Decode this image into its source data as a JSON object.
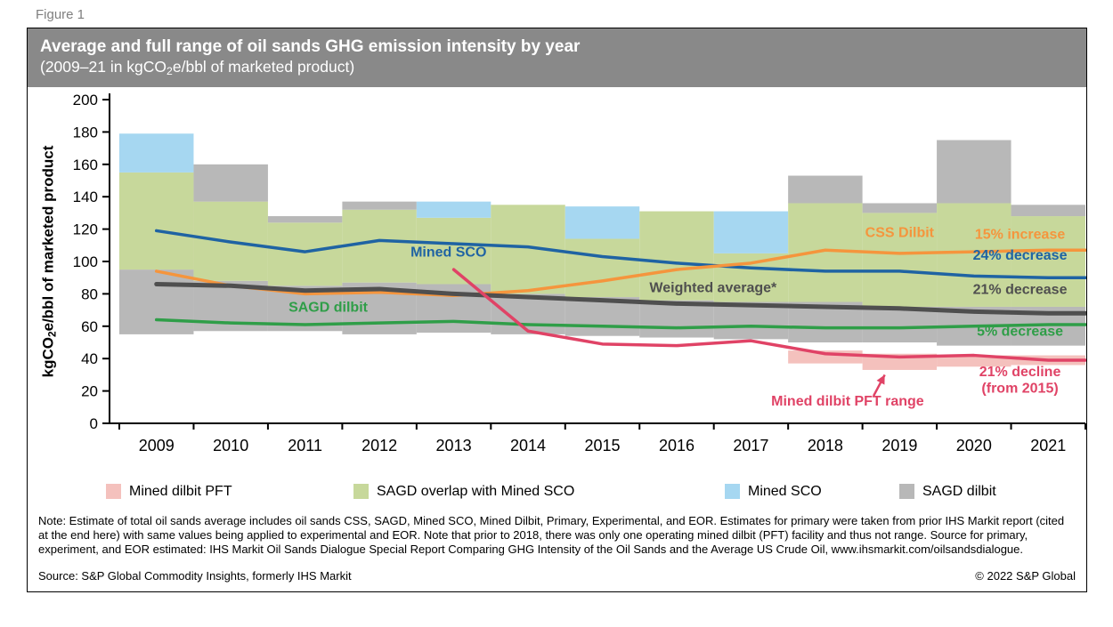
{
  "figure_label": "Figure 1",
  "header": {
    "title": "Average and full range of oil sands GHG emission intensity by year",
    "subtitle": {
      "pre": "(2009–21 in kgCO",
      "sub": "2",
      "post": "e/bbl of marketed product)"
    }
  },
  "chart_data": {
    "type": "combo-range-line",
    "x": [
      2009,
      2010,
      2011,
      2012,
      2013,
      2014,
      2015,
      2016,
      2017,
      2018,
      2019,
      2020,
      2021
    ],
    "ylim": [
      0,
      200
    ],
    "yticks": [
      0,
      20,
      40,
      60,
      80,
      100,
      120,
      140,
      160,
      180,
      200
    ],
    "ylabel": {
      "pre": "kgCO",
      "sub": "2",
      "post": "e/bbl of marketed product"
    },
    "band_colors": {
      "gray": "#b8b8b8",
      "green": "#c7d89b",
      "blue": "#a6d7f1",
      "pink": "#f4c1bd"
    },
    "bands": [
      {
        "year": 2009,
        "segments": [
          [
            "gray",
            55,
            95
          ],
          [
            "green",
            95,
            155
          ],
          [
            "blue",
            155,
            179
          ]
        ]
      },
      {
        "year": 2010,
        "segments": [
          [
            "gray",
            57,
            88
          ],
          [
            "green",
            88,
            137
          ],
          [
            "gray",
            137,
            160
          ]
        ]
      },
      {
        "year": 2011,
        "segments": [
          [
            "gray",
            57,
            85
          ],
          [
            "green",
            85,
            124
          ],
          [
            "gray",
            124,
            128
          ]
        ]
      },
      {
        "year": 2012,
        "segments": [
          [
            "gray",
            55,
            87
          ],
          [
            "green",
            87,
            132
          ],
          [
            "gray",
            132,
            137
          ]
        ]
      },
      {
        "year": 2013,
        "segments": [
          [
            "gray",
            56,
            86
          ],
          [
            "green",
            86,
            127
          ],
          [
            "blue",
            127,
            137
          ]
        ]
      },
      {
        "year": 2014,
        "segments": [
          [
            "gray",
            55,
            80
          ],
          [
            "green",
            80,
            135
          ]
        ]
      },
      {
        "year": 2015,
        "segments": [
          [
            "gray",
            54,
            78
          ],
          [
            "green",
            78,
            114
          ],
          [
            "blue",
            114,
            134
          ]
        ]
      },
      {
        "year": 2016,
        "segments": [
          [
            "gray",
            53,
            76
          ],
          [
            "green",
            76,
            131
          ]
        ]
      },
      {
        "year": 2017,
        "segments": [
          [
            "gray",
            52,
            75
          ],
          [
            "green",
            75,
            105
          ],
          [
            "blue",
            105,
            131
          ]
        ]
      },
      {
        "year": 2018,
        "segments": [
          [
            "pink",
            37,
            45
          ],
          [
            "gray",
            50,
            75
          ],
          [
            "green",
            75,
            136
          ],
          [
            "gray",
            136,
            153
          ]
        ]
      },
      {
        "year": 2019,
        "segments": [
          [
            "pink",
            33,
            43
          ],
          [
            "gray",
            50,
            72
          ],
          [
            "green",
            72,
            130
          ],
          [
            "gray",
            130,
            136
          ]
        ]
      },
      {
        "year": 2020,
        "segments": [
          [
            "pink",
            35,
            42
          ],
          [
            "gray",
            48,
            72
          ],
          [
            "green",
            72,
            136
          ],
          [
            "gray",
            136,
            175
          ]
        ]
      },
      {
        "year": 2021,
        "segments": [
          [
            "pink",
            36,
            42
          ],
          [
            "gray",
            48,
            72
          ],
          [
            "green",
            72,
            128
          ],
          [
            "gray",
            128,
            135
          ]
        ]
      }
    ],
    "series": [
      {
        "name": "Mined SCO",
        "color": "#1f63a3",
        "width": 3.5,
        "values": [
          119,
          112,
          106,
          113,
          111,
          109,
          103,
          99,
          96,
          94,
          94,
          91,
          90
        ]
      },
      {
        "name": "CSS Dilbit",
        "color": "#f5953d",
        "width": 3.5,
        "values": [
          94,
          85,
          80,
          81,
          79,
          82,
          88,
          95,
          99,
          107,
          105,
          106,
          107
        ]
      },
      {
        "name": "Weighted average",
        "color": "#4f4f4f",
        "width": 5,
        "values": [
          86,
          85,
          82,
          83,
          80,
          78,
          76,
          74,
          73,
          72,
          71,
          69,
          68
        ]
      },
      {
        "name": "SAGD dilbit",
        "color": "#2f9e48",
        "width": 3.5,
        "values": [
          64,
          62,
          61,
          62,
          63,
          61,
          60,
          59,
          60,
          59,
          59,
          60,
          61
        ]
      },
      {
        "name": "Mined dilbit PFT",
        "color": "#e04366",
        "width": 3.5,
        "values": [
          null,
          null,
          null,
          null,
          95,
          57,
          49,
          48,
          51,
          43,
          41,
          42,
          39
        ]
      }
    ],
    "annotations": [
      {
        "text": "Mined SCO",
        "x": 2012.93,
        "y": 103,
        "color": "#1f63a3"
      },
      {
        "text": "SAGD dilbit",
        "x": 2011.31,
        "y": 69,
        "color": "#2f9e48"
      },
      {
        "text": "Weighted average*",
        "x": 2016.49,
        "y": 81,
        "color": "#4f4f4f"
      },
      {
        "text": "CSS Dilbit",
        "x": 2019.0,
        "y": 115,
        "color": "#f5953d"
      },
      {
        "text": "15% increase",
        "x": 2020.62,
        "y": 114,
        "color": "#f5953d"
      },
      {
        "text": "24% decrease",
        "x": 2020.62,
        "y": 101,
        "color": "#1f63a3"
      },
      {
        "text": "21% decrease",
        "x": 2020.62,
        "y": 80,
        "color": "#4f4f4f"
      },
      {
        "text": "5% decrease",
        "x": 2020.62,
        "y": 54,
        "color": "#2f9e48"
      },
      {
        "text": "21% decline",
        "x": 2020.62,
        "y": 29,
        "color": "#e04366"
      },
      {
        "text": "(from 2015)",
        "x": 2020.62,
        "y": 19,
        "color": "#e04366"
      },
      {
        "text": "Mined dilbit PFT range",
        "x": 2018.3,
        "y": 11,
        "color": "#e04366"
      }
    ],
    "arrow": {
      "x1": 2018.65,
      "y1": 17,
      "x2": 2018.8,
      "y2": 30,
      "color": "#e04366"
    }
  },
  "legend": [
    {
      "label": "Mined dilbit PFT",
      "color": "#f4c1bd"
    },
    {
      "label": "SAGD overlap with Mined SCO",
      "color": "#c7d89b"
    },
    {
      "label": "Mined SCO",
      "color": "#a6d7f1"
    },
    {
      "label": "SAGD dilbit",
      "color": "#b8b8b8"
    }
  ],
  "footer": {
    "note": "Note: Estimate of total oil sands average includes oil sands CSS, SAGD, Mined SCO, Mined Dilbit, Primary, Experimental, and EOR. Estimates for primary were taken from prior IHS Markit report (cited at the end here) with same values being applied to experimental and EOR. Note that prior to 2018, there was only one operating mined dilbit (PFT) facility and thus not range. Source for primary, experiment, and EOR estimated: IHS Markit Oil Sands Dialogue Special Report Comparing GHG Intensity of the Oil Sands and the Average US Crude Oil, www.ihsmarkit.com/oilsandsdialogue.",
    "source": "Source: S&P Global Commodity Insights, formerly IHS Markit",
    "copyright": "© 2022 S&P Global"
  }
}
